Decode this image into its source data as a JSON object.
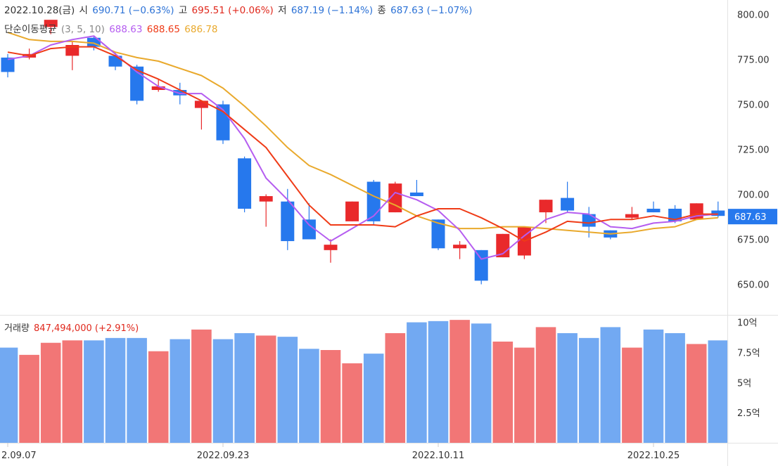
{
  "header": {
    "date": "2022.10.28(금)",
    "open_label": "시",
    "open_value": "690.71 (−0.63%)",
    "high_label": "고",
    "high_value": "695.51 (+0.06%)",
    "low_label": "저",
    "low_value": "687.19 (−1.14%)",
    "close_label": "종",
    "close_value": "687.63 (−1.07%)",
    "ma_label": "단순이동평균",
    "ma_periods": "(3, 5, 10)",
    "ma3_value": "688.63",
    "ma5_value": "688.65",
    "ma10_value": "686.78",
    "volume_label": "거래량",
    "volume_value": "847,494,000 (+2.91%)"
  },
  "colors": {
    "up": "#e9292b",
    "down": "#2678ed",
    "vol_up": "#f27676",
    "vol_down": "#72a9f2",
    "ma3": "#b55df0",
    "ma5": "#ef3b17",
    "ma10": "#e9a92c",
    "last_price_bg": "#2678ed"
  },
  "chart_data": [
    {
      "type": "candlestick",
      "yticks": [
        "800.00",
        "775.00",
        "750.00",
        "725.00",
        "700.00",
        "675.00",
        "650.00"
      ],
      "ylim": [
        633,
        808
      ],
      "last_price_label": "687.63",
      "xticks": [
        {
          "label": "2.09.07",
          "index": 0
        },
        {
          "label": "2022.09.23",
          "index": 10
        },
        {
          "label": "2022.10.11",
          "index": 20
        },
        {
          "label": "2022.10.25",
          "index": 30
        }
      ],
      "candles": [
        {
          "o": 776,
          "h": 778,
          "l": 765,
          "c": 768
        },
        {
          "o": 776,
          "h": 781,
          "l": 775,
          "c": 778
        },
        {
          "o": 793,
          "h": 796,
          "l": 789,
          "c": 797
        },
        {
          "o": 777,
          "h": 785,
          "l": 769,
          "c": 783
        },
        {
          "o": 787,
          "h": 788,
          "l": 780,
          "c": 782
        },
        {
          "o": 777,
          "h": 779,
          "l": 769,
          "c": 771
        },
        {
          "o": 771,
          "h": 772,
          "l": 750,
          "c": 752
        },
        {
          "o": 758,
          "h": 764,
          "l": 757,
          "c": 760
        },
        {
          "o": 758,
          "h": 762,
          "l": 750,
          "c": 755
        },
        {
          "o": 748,
          "h": 752,
          "l": 736,
          "c": 752
        },
        {
          "o": 750,
          "h": 752,
          "l": 728,
          "c": 730
        },
        {
          "o": 720,
          "h": 721,
          "l": 690,
          "c": 692
        },
        {
          "o": 696,
          "h": 700,
          "l": 682,
          "c": 699
        },
        {
          "o": 696,
          "h": 703,
          "l": 669,
          "c": 674
        },
        {
          "o": 686,
          "h": 695,
          "l": 675,
          "c": 675
        },
        {
          "o": 669,
          "h": 675,
          "l": 662,
          "c": 672
        },
        {
          "o": 685,
          "h": 696,
          "l": 685,
          "c": 696
        },
        {
          "o": 707,
          "h": 708,
          "l": 683,
          "c": 685
        },
        {
          "o": 690,
          "h": 707,
          "l": 690,
          "c": 706
        },
        {
          "o": 701,
          "h": 708,
          "l": 699,
          "c": 699
        },
        {
          "o": 686,
          "h": 686,
          "l": 669,
          "c": 670
        },
        {
          "o": 670,
          "h": 674,
          "l": 664,
          "c": 672
        },
        {
          "o": 669,
          "h": 669,
          "l": 650,
          "c": 652
        },
        {
          "o": 665,
          "h": 678,
          "l": 665,
          "c": 678
        },
        {
          "o": 666,
          "h": 682,
          "l": 664,
          "c": 682
        },
        {
          "o": 690,
          "h": 697,
          "l": 684,
          "c": 697
        },
        {
          "o": 698,
          "h": 707,
          "l": 690,
          "c": 691
        },
        {
          "o": 689,
          "h": 693,
          "l": 676,
          "c": 682
        },
        {
          "o": 680,
          "h": 680,
          "l": 675,
          "c": 676
        },
        {
          "o": 687,
          "h": 693,
          "l": 686,
          "c": 689
        },
        {
          "o": 692,
          "h": 696,
          "l": 690,
          "c": 690
        },
        {
          "o": 692,
          "h": 694,
          "l": 684,
          "c": 685
        },
        {
          "o": 686,
          "h": 695,
          "l": 686,
          "c": 695
        },
        {
          "o": 691,
          "h": 696,
          "l": 687,
          "c": 688
        }
      ],
      "ma3": [
        775,
        777,
        783,
        786,
        788,
        778,
        768,
        760,
        756,
        756,
        747,
        731,
        709,
        697,
        683,
        674,
        681,
        688,
        701,
        697,
        691,
        680,
        664,
        667,
        677,
        686,
        690,
        689,
        682,
        681,
        684,
        685,
        688,
        689
      ],
      "ma5": [
        779,
        777,
        781,
        782,
        782,
        777,
        769,
        764,
        758,
        752,
        746,
        736,
        726,
        710,
        694,
        683,
        683,
        683,
        682,
        688,
        692,
        692,
        687,
        681,
        674,
        679,
        685,
        684,
        686,
        686,
        688,
        686,
        689,
        689
      ],
      "ma10": [
        790,
        786,
        785,
        785,
        784,
        779,
        776,
        774,
        770,
        766,
        759,
        749,
        738,
        726,
        716,
        711,
        705,
        699,
        694,
        688,
        684,
        681,
        681,
        682,
        682,
        681,
        680,
        679,
        678,
        679,
        681,
        682,
        686,
        687
      ]
    },
    {
      "type": "bar",
      "title": "거래량",
      "yticks": [
        "10억",
        "7.5억",
        "5억",
        "2.5억"
      ],
      "ylim": [
        0,
        10.5
      ],
      "unit": "억",
      "values": [
        7.9,
        7.3,
        8.3,
        8.5,
        8.5,
        8.7,
        8.7,
        7.6,
        8.6,
        9.4,
        8.6,
        9.1,
        8.9,
        8.8,
        7.8,
        7.7,
        6.6,
        7.4,
        9.1,
        10.0,
        10.1,
        10.2,
        9.9,
        8.4,
        7.9,
        9.6,
        9.1,
        8.7,
        9.6,
        7.9,
        9.4,
        9.1,
        8.2,
        8.5
      ]
    }
  ]
}
